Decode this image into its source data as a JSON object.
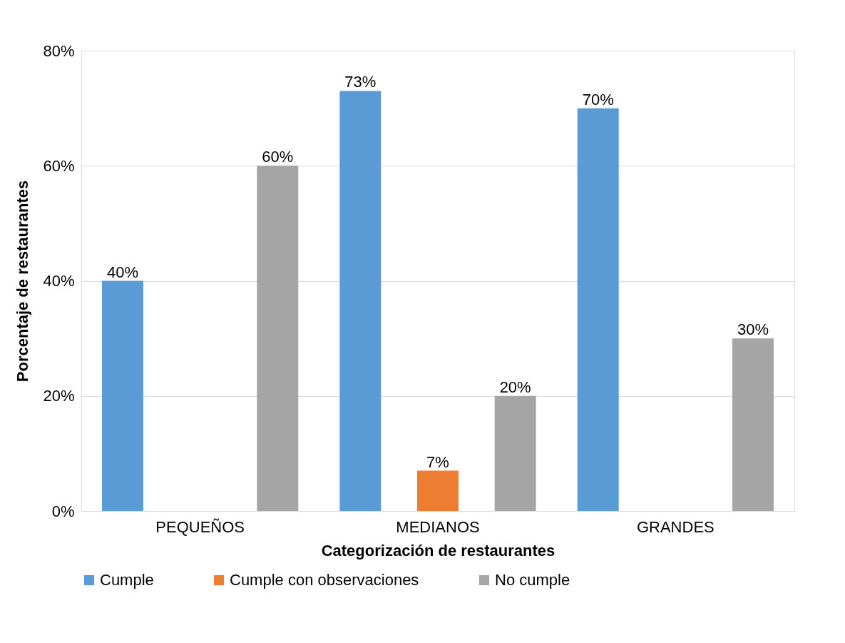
{
  "chart_data": {
    "type": "bar",
    "xlabel": "Categorización de restaurantes",
    "ylabel": "Porcentaje de restaurantes",
    "categories": [
      "PEQUEÑOS",
      "MEDIANOS",
      "GRANDES"
    ],
    "series": [
      {
        "name": "Cumple",
        "color": "#5b9bd5",
        "values": [
          40,
          73,
          70
        ],
        "value_labels": [
          "40%",
          "73%",
          "70%"
        ]
      },
      {
        "name": "Cumple con observaciones",
        "color": "#ed7d31",
        "values": [
          null,
          7,
          null
        ],
        "value_labels": [
          null,
          "7%",
          null
        ]
      },
      {
        "name": "No cumple",
        "color": "#a5a5a5",
        "values": [
          60,
          20,
          30
        ],
        "value_labels": [
          "60%",
          "20%",
          "30%"
        ]
      }
    ],
    "ylim": [
      0,
      80
    ],
    "yticks": [
      {
        "value": 0,
        "label": "0%"
      },
      {
        "value": 20,
        "label": "20%"
      },
      {
        "value": 40,
        "label": "40%"
      },
      {
        "value": 60,
        "label": "60%"
      },
      {
        "value": 80,
        "label": "80%"
      }
    ],
    "grid": "y",
    "legend": "bottom"
  }
}
